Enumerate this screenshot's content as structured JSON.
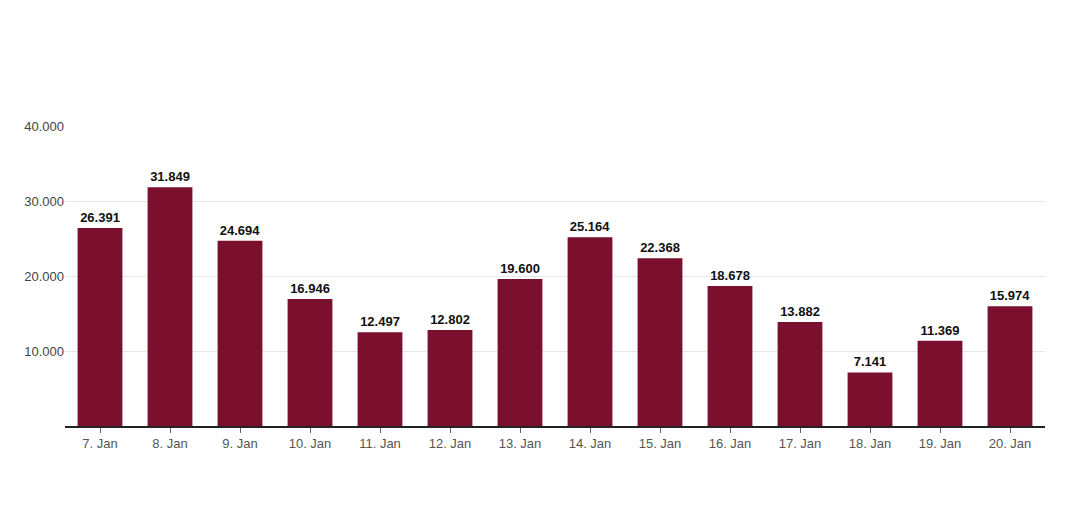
{
  "chart_data": {
    "type": "bar",
    "categories": [
      "7. Jan",
      "8. Jan",
      "9. Jan",
      "10. Jan",
      "11. Jan",
      "12. Jan",
      "13. Jan",
      "14. Jan",
      "15. Jan",
      "16. Jan",
      "17. Jan",
      "18. Jan",
      "19. Jan",
      "20. Jan"
    ],
    "values": [
      26391,
      31849,
      24694,
      16946,
      12497,
      12802,
      19600,
      25164,
      22368,
      18678,
      13882,
      7141,
      11369,
      15974
    ],
    "value_labels": [
      "26.391",
      "31.849",
      "24.694",
      "16.946",
      "12.497",
      "12.802",
      "19.600",
      "25.164",
      "22.368",
      "18.678",
      "13.882",
      "7.141",
      "11.369",
      "15.974"
    ],
    "color": "#7a0f2e",
    "ylim": [
      0,
      40000
    ],
    "yticks": [
      {
        "value": 10000,
        "label": "10.000"
      },
      {
        "value": 20000,
        "label": "20.000"
      },
      {
        "value": 30000,
        "label": "30.000"
      },
      {
        "value": 40000,
        "label": "40.000"
      }
    ],
    "grid": true,
    "data_labels": true
  }
}
